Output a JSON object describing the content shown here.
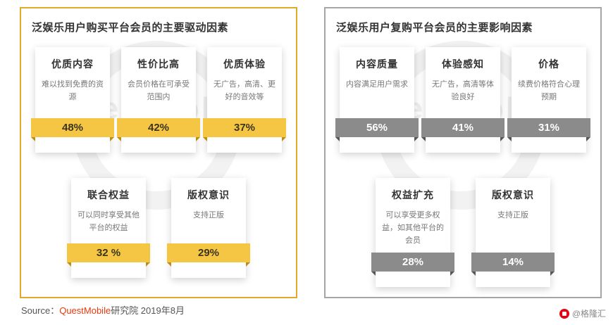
{
  "watermark": "QuestMobile",
  "left_panel": {
    "title": "泛娱乐用户购买平台会员的主要驱动因素",
    "accent_color": "#F4C643",
    "border_color": "#E2A92B",
    "cards": [
      {
        "title": "优质内容",
        "desc": "难以找到免费的资源",
        "value": "48%"
      },
      {
        "title": "性价比高",
        "desc": "会员价格在可承受范围内",
        "value": "42%"
      },
      {
        "title": "优质体验",
        "desc": "无广告，高清、更好的音效等",
        "value": "37%"
      },
      {
        "title": "联合权益",
        "desc": "可以同时享受其他平台的权益",
        "value": "32 %"
      },
      {
        "title": "版权意识",
        "desc": "支持正版",
        "value": "29%"
      }
    ]
  },
  "right_panel": {
    "title": "泛娱乐用户复购平台会员的主要影响因素",
    "accent_color": "#8B8B8B",
    "border_color": "#A6A6A6",
    "cards": [
      {
        "title": "内容质量",
        "desc": "内容满足用户需求",
        "value": "56%"
      },
      {
        "title": "体验感知",
        "desc": "无广告，高清等体验良好",
        "value": "41%"
      },
      {
        "title": "价格",
        "desc": "续费价格符合心理预期",
        "value": "31%"
      },
      {
        "title": "权益扩充",
        "desc": "可以享受更多权益，如其他平台的会员",
        "value": "28%"
      },
      {
        "title": "版权意识",
        "desc": "支持正版",
        "value": "14%"
      }
    ]
  },
  "source": {
    "label": "Source：",
    "brand": "QuestMobile",
    "suffix": "研究院 2019年8月"
  },
  "footer": {
    "brand": "@格隆汇",
    "logo_color": "#E60012"
  },
  "chart_data": [
    {
      "type": "bar",
      "title": "泛娱乐用户购买平台会员的主要驱动因素",
      "categories": [
        "优质内容",
        "性价比高",
        "优质体验",
        "联合权益",
        "版权意识"
      ],
      "values": [
        48,
        42,
        37,
        32,
        29
      ],
      "annotations": [
        "难以找到免费的资源",
        "会员价格在可承受范围内",
        "无广告，高清、更好的音效等",
        "可以同时享受其他平台的权益",
        "支持正版"
      ],
      "unit": "%",
      "bar_color": "#F4C643"
    },
    {
      "type": "bar",
      "title": "泛娱乐用户复购平台会员的主要影响因素",
      "categories": [
        "内容质量",
        "体验感知",
        "价格",
        "权益扩充",
        "版权意识"
      ],
      "values": [
        56,
        41,
        31,
        28,
        14
      ],
      "annotations": [
        "内容满足用户需求",
        "无广告，高清等体验良好",
        "续费价格符合心理预期",
        "可以享受更多权益，如其他平台的会员",
        "支持正版"
      ],
      "unit": "%",
      "bar_color": "#8B8B8B"
    }
  ]
}
